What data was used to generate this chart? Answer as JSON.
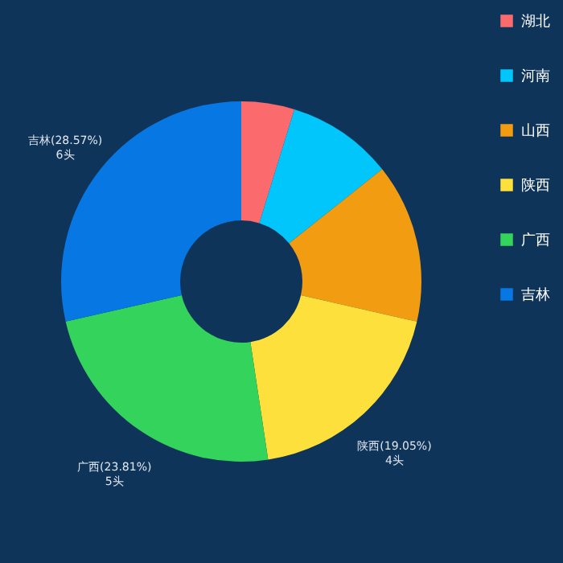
{
  "chart_data": {
    "type": "donut",
    "categories": [
      "湖北",
      "河南",
      "山西",
      "陕西",
      "广西",
      "吉林"
    ],
    "values": [
      1,
      2,
      3,
      4,
      5,
      6
    ],
    "colors": [
      "#fb6a6c",
      "#00c6fb",
      "#f29c12",
      "#fde03b",
      "#33d35c",
      "#0778e3"
    ],
    "value_labels": [
      null,
      null,
      null,
      "陕西(19.05%)\n4头",
      "广西(23.81%)\n5头",
      "吉林(28.57%)\n6头"
    ],
    "legend": "right"
  }
}
